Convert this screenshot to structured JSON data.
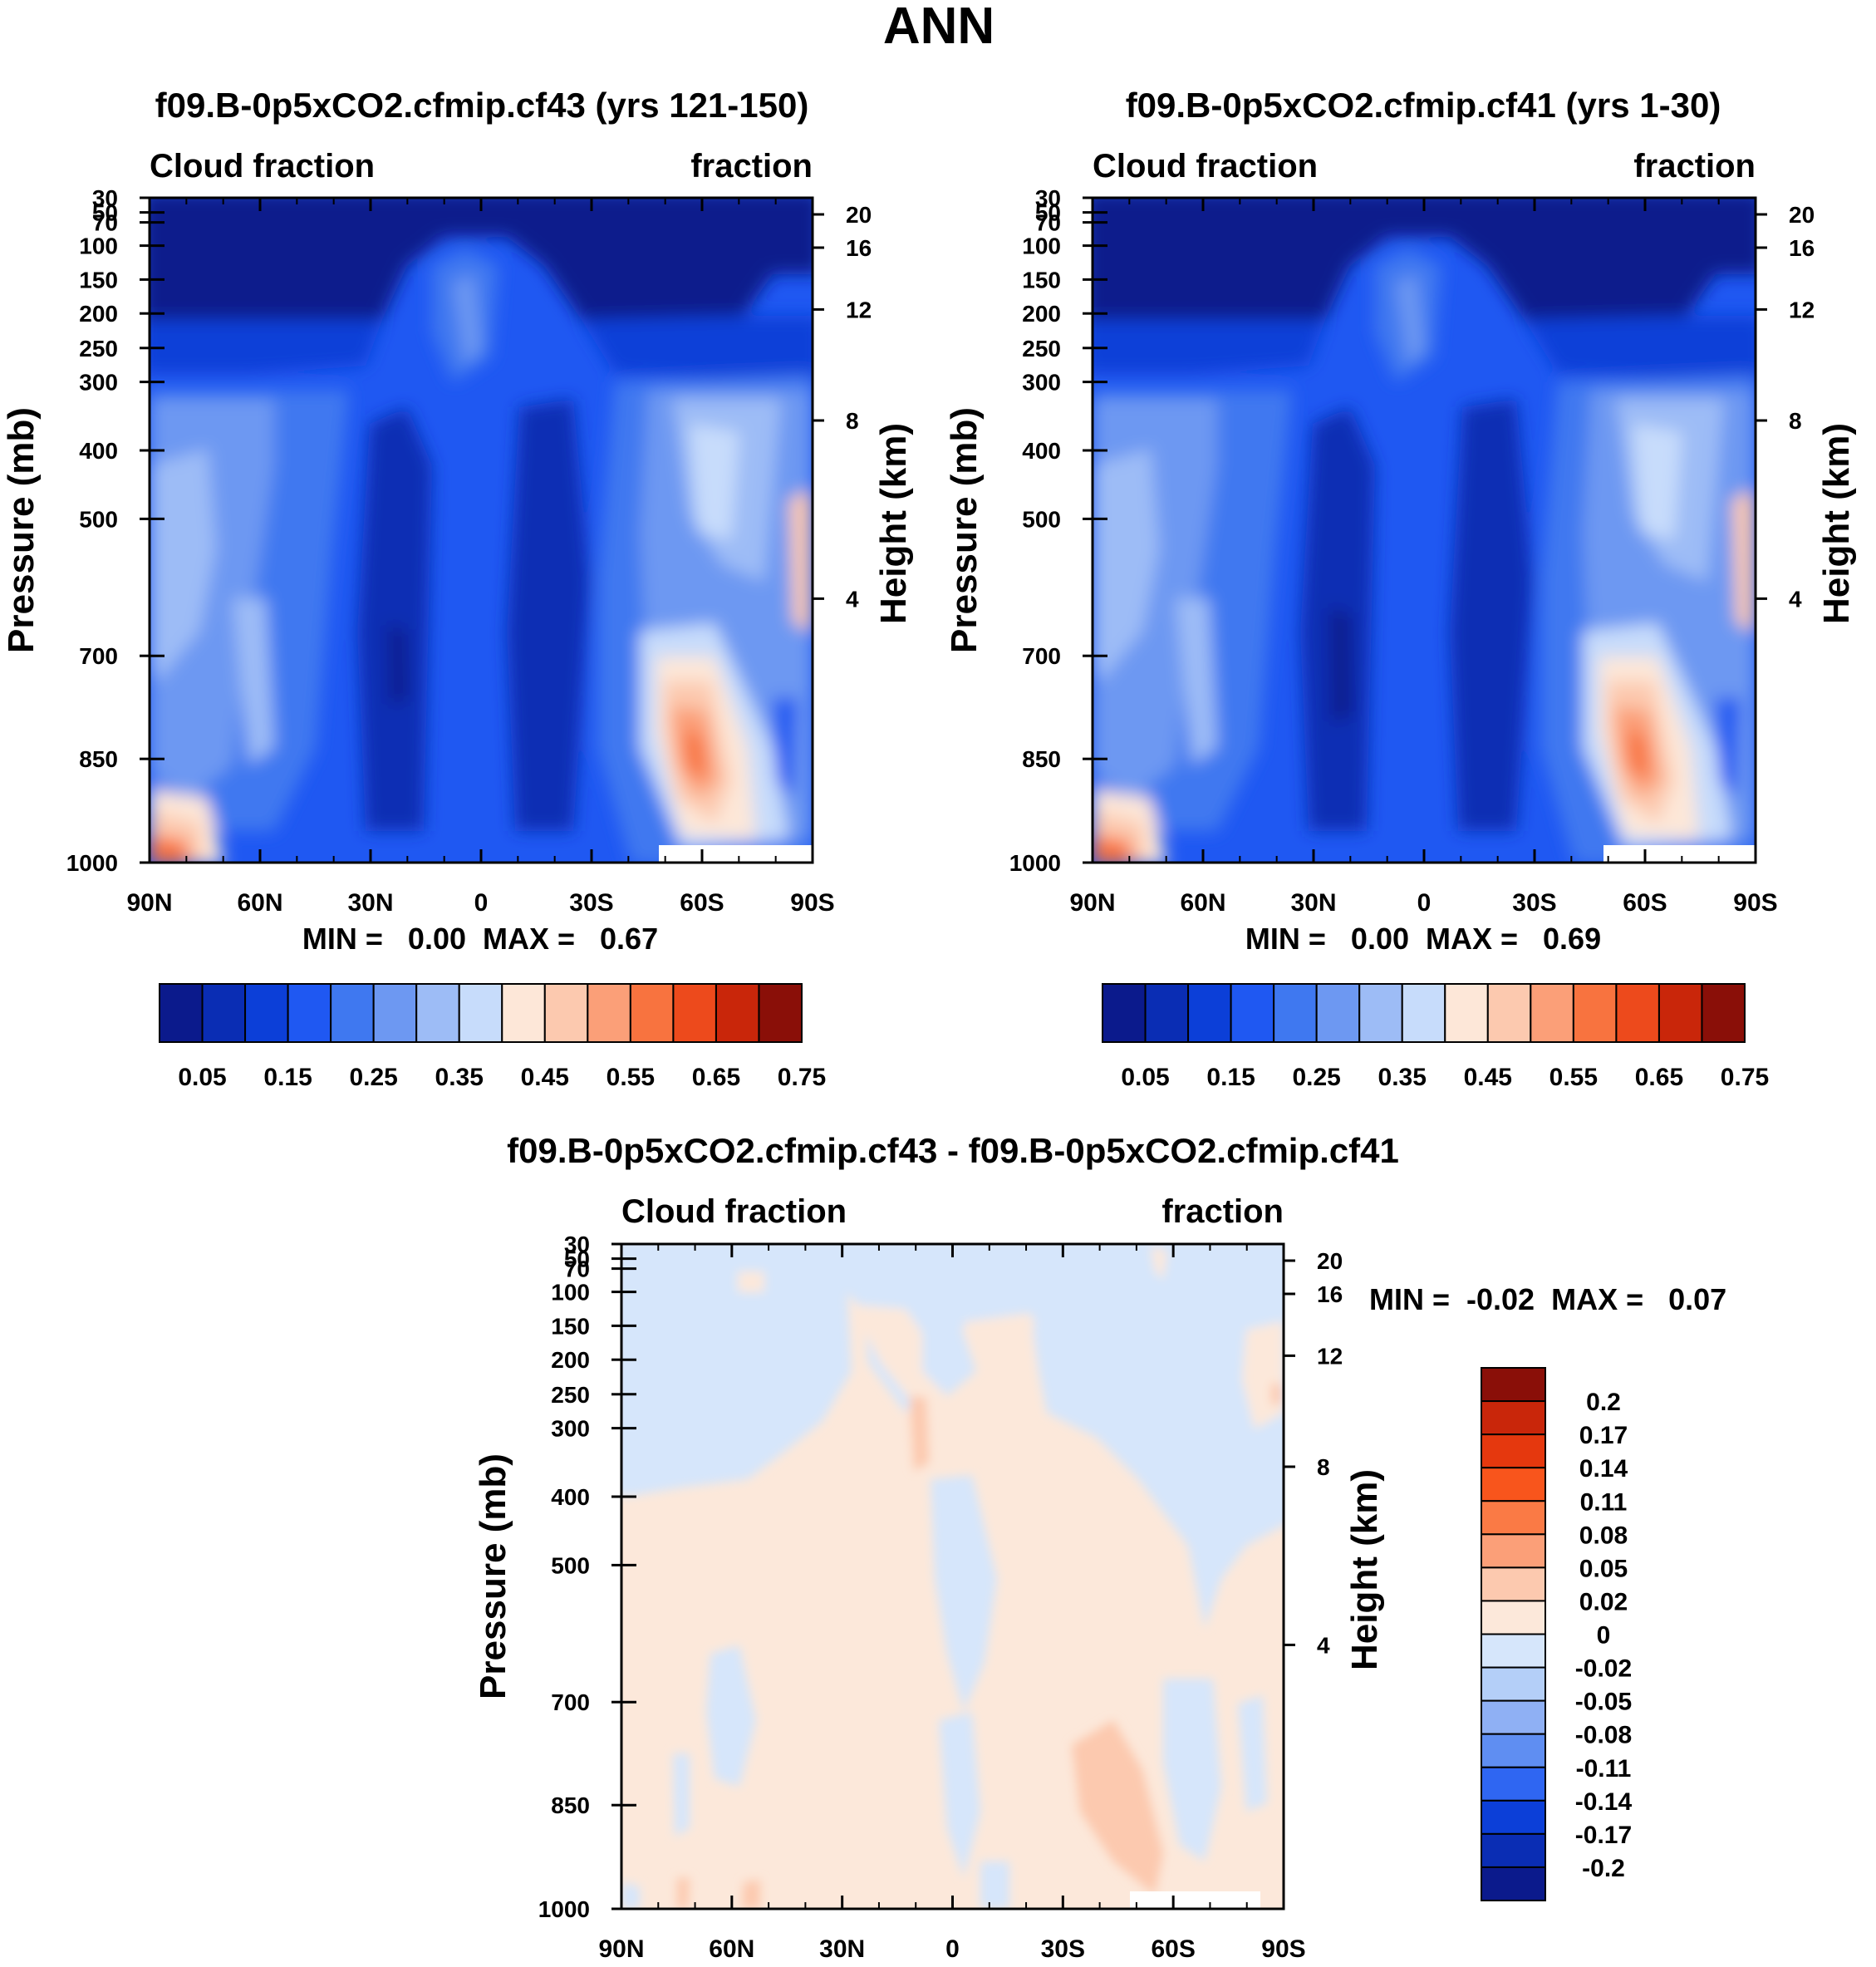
{
  "figure_title": "ANN",
  "colors": {
    "abs_scale": [
      "#0b1a8c",
      "#0a2db4",
      "#0c3fd8",
      "#1f58f2",
      "#3f78f0",
      "#6d98f2",
      "#9dbcf6",
      "#c7dcfb",
      "#fde7d8",
      "#fcc9af",
      "#fb9f78",
      "#f8733f",
      "#ed4a1c",
      "#c9260a",
      "#8a0f08"
    ],
    "diff_scale": [
      "#0b1a8c",
      "#0a2db4",
      "#0c3fd8",
      "#1f58f2",
      "#3f78f0",
      "#6d98f2",
      "#9dbcf6",
      "#d6e6fb",
      "#fce8da",
      "#fcc9af",
      "#fb9f78",
      "#f8733f",
      "#ed4a1c",
      "#c9260a",
      "#8a0f08"
    ]
  },
  "chart_data": [
    {
      "id": "panel1",
      "type": "heatmap",
      "title": "f09.B-0p5xCO2.cfmip.cf43 (yrs 121-150)",
      "left_label": "Cloud fraction",
      "right_label": "fraction",
      "ylabel": "Pressure (mb)",
      "y2label": "Height (km)",
      "xticks": [
        "90N",
        "60N",
        "30N",
        "0",
        "30S",
        "60S",
        "90S"
      ],
      "yticks": [
        "30",
        "50",
        "70",
        "100",
        "150",
        "200",
        "250",
        "300",
        "400",
        "500",
        "700",
        "850",
        "1000"
      ],
      "y2ticks": [
        "20",
        "16",
        "12",
        "8",
        "4"
      ],
      "stats": "MIN =   0.00  MAX =   0.67",
      "levels": [
        "0.05",
        "0.15",
        "0.25",
        "0.35",
        "0.45",
        "0.55",
        "0.65",
        "0.75"
      ],
      "x": [
        -90,
        90
      ],
      "ylim": [
        1000,
        30
      ]
    },
    {
      "id": "panel2",
      "type": "heatmap",
      "title": "f09.B-0p5xCO2.cfmip.cf41 (yrs 1-30)",
      "left_label": "Cloud fraction",
      "right_label": "fraction",
      "ylabel": "Pressure (mb)",
      "y2label": "Height (km)",
      "xticks": [
        "90N",
        "60N",
        "30N",
        "0",
        "30S",
        "60S",
        "90S"
      ],
      "yticks": [
        "30",
        "50",
        "70",
        "100",
        "150",
        "200",
        "250",
        "300",
        "400",
        "500",
        "700",
        "850",
        "1000"
      ],
      "y2ticks": [
        "20",
        "16",
        "12",
        "8",
        "4"
      ],
      "stats": "MIN =   0.00  MAX =   0.69",
      "levels": [
        "0.05",
        "0.15",
        "0.25",
        "0.35",
        "0.45",
        "0.55",
        "0.65",
        "0.75"
      ],
      "x": [
        -90,
        90
      ],
      "ylim": [
        1000,
        30
      ]
    },
    {
      "id": "panel3",
      "type": "heatmap",
      "title": "f09.B-0p5xCO2.cfmip.cf43 - f09.B-0p5xCO2.cfmip.cf41",
      "left_label": "Cloud fraction",
      "right_label": "fraction",
      "ylabel": "Pressure (mb)",
      "y2label": "Height (km)",
      "xticks": [
        "90N",
        "60N",
        "30N",
        "0",
        "30S",
        "60S",
        "90S"
      ],
      "yticks": [
        "30",
        "50",
        "70",
        "100",
        "150",
        "200",
        "250",
        "300",
        "400",
        "500",
        "700",
        "850",
        "1000"
      ],
      "y2ticks": [
        "20",
        "16",
        "12",
        "8",
        "4"
      ],
      "stats": "MIN =  -0.02  MAX =   0.07",
      "levels": [
        "0.2",
        "0.17",
        "0.14",
        "0.11",
        "0.08",
        "0.05",
        "0.02",
        "0",
        "-0.02",
        "-0.05",
        "-0.08",
        "-0.11",
        "-0.14",
        "-0.17",
        "-0.2"
      ],
      "x": [
        -90,
        90
      ],
      "ylim": [
        1000,
        30
      ]
    }
  ]
}
